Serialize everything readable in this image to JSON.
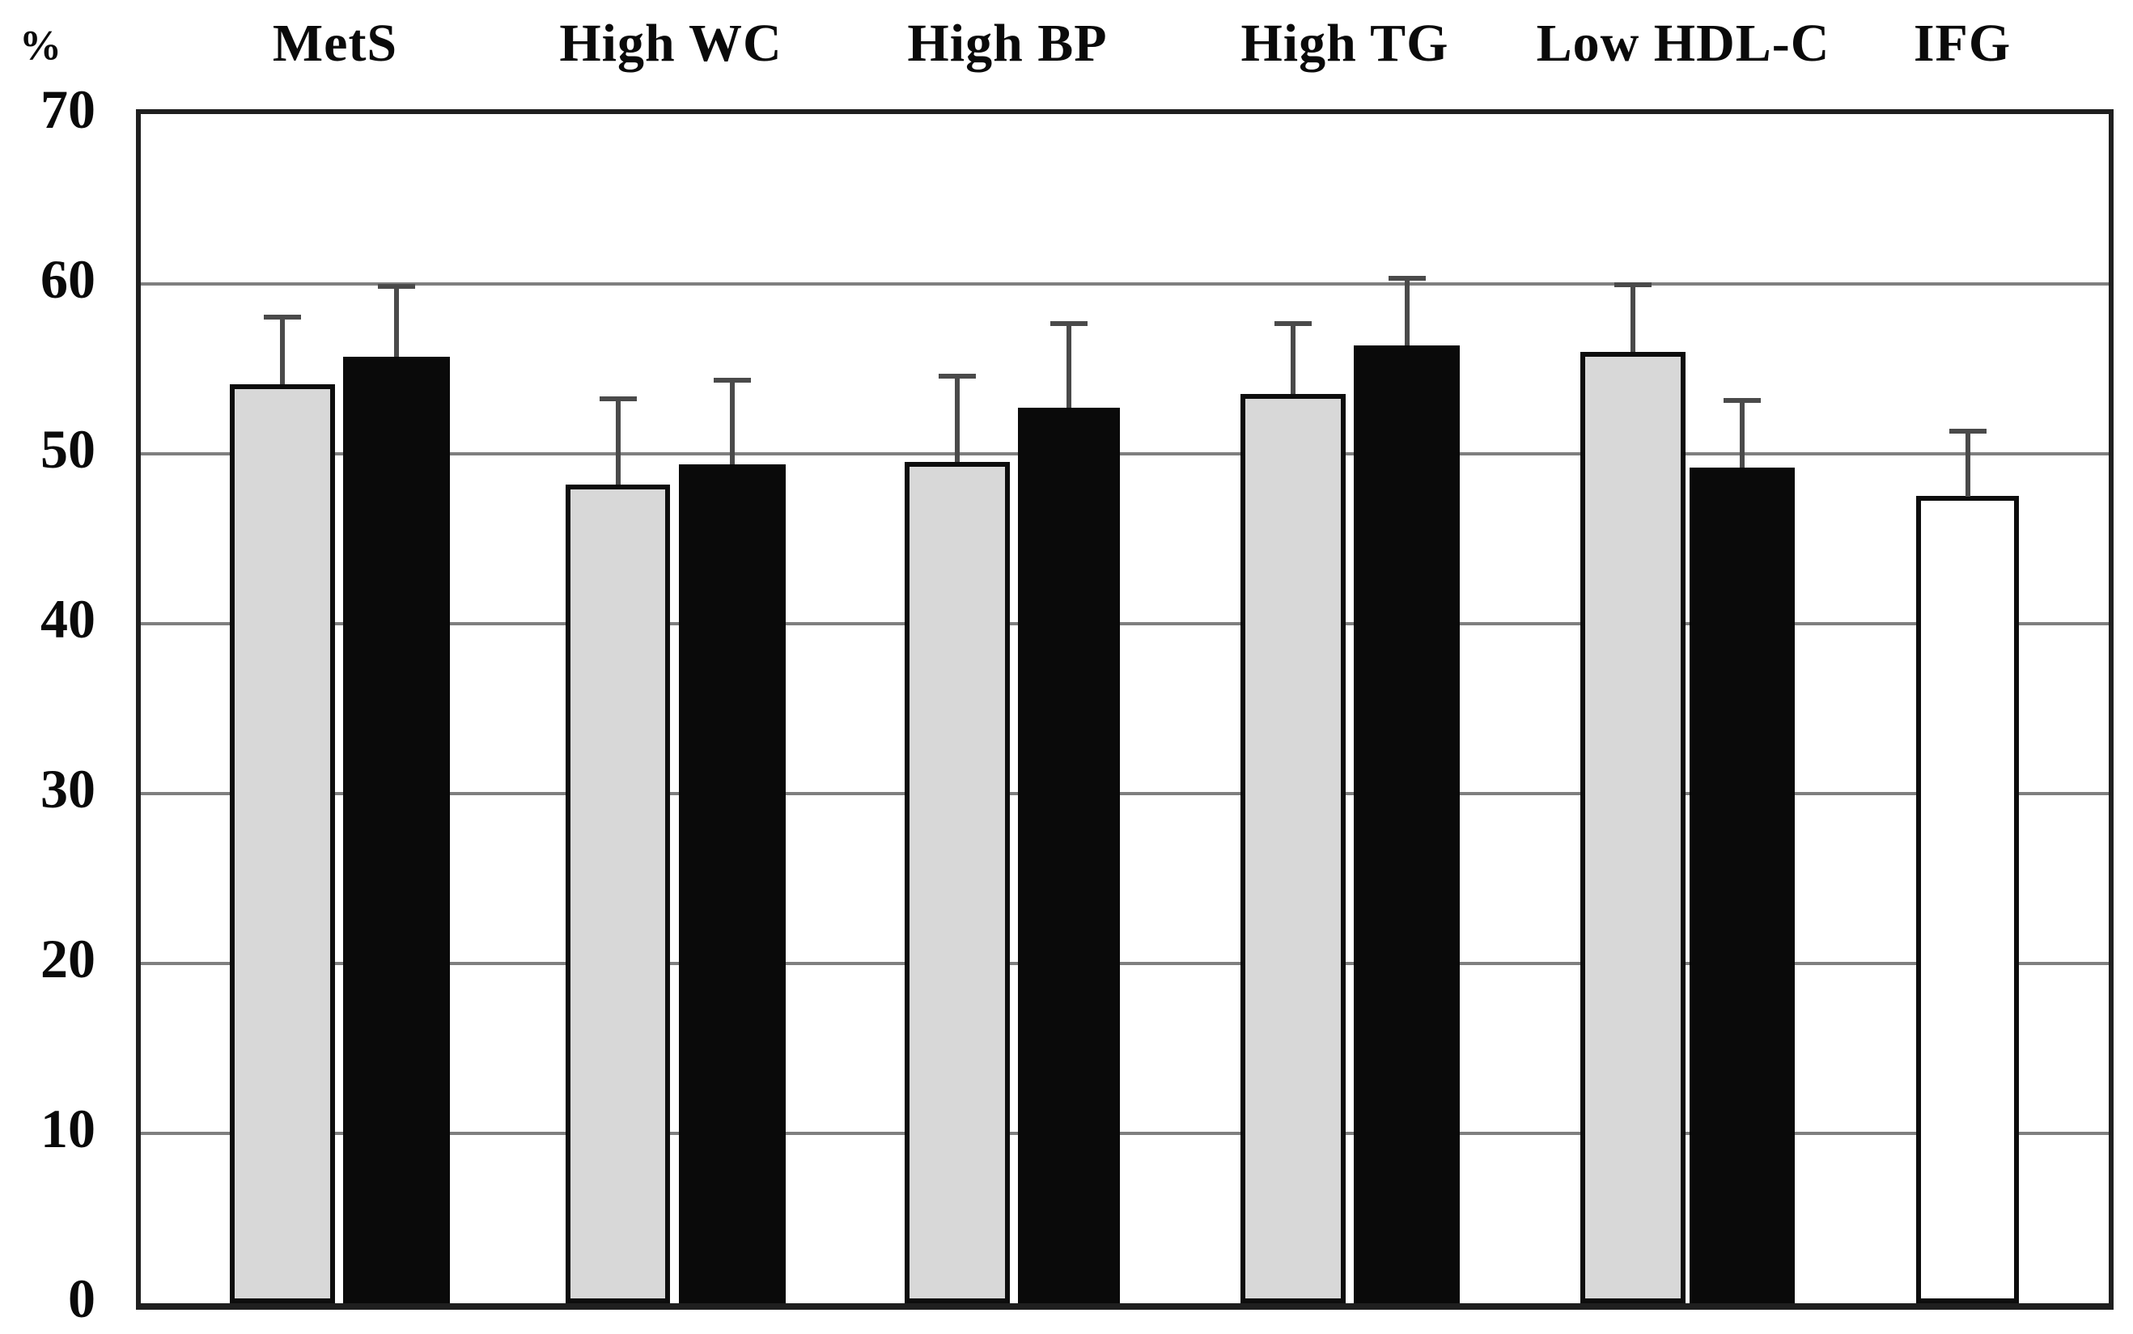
{
  "chart_data": {
    "type": "bar",
    "title": "",
    "ylabel": "%",
    "xlabel": "",
    "ylim": [
      0,
      70
    ],
    "yticks": [
      0,
      10,
      20,
      30,
      40,
      50,
      60,
      70
    ],
    "grid": "horizontal",
    "legend": "none",
    "error_bars": "upper-only",
    "categories": [
      "MetS",
      "High WC",
      "High BP",
      "High TG",
      "Low HDL-C",
      "IFG"
    ],
    "series": [
      {
        "name": "gray",
        "color": "#d8d8d8",
        "border_color": "#0d0d0d",
        "values": [
          54.1,
          48.2,
          49.5,
          53.5,
          56.0,
          null
        ],
        "error_up": [
          4.0,
          5.1,
          5.1,
          4.2,
          4.0,
          null
        ]
      },
      {
        "name": "black",
        "color": "#0a0a0a",
        "border_color": "#0a0a0a",
        "values": [
          55.7,
          49.4,
          52.7,
          56.4,
          49.2,
          null
        ],
        "error_up": [
          4.2,
          5.0,
          5.0,
          4.0,
          4.0,
          null
        ]
      },
      {
        "name": "white",
        "color": "#ffffff",
        "border_color": "#0d0d0d",
        "values": [
          null,
          null,
          null,
          null,
          null,
          47.5
        ],
        "error_up": [
          null,
          null,
          null,
          null,
          null,
          3.9
        ]
      }
    ]
  }
}
